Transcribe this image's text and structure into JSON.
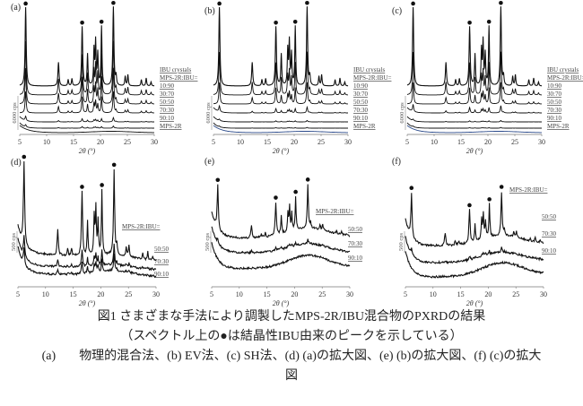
{
  "figure": {
    "caption_title": "図1 さまざまな手法により調製したMPS-2R/IBU混合物のPXRDの結果",
    "caption_note": "（スペクトル上の●は結晶性IBU由来のピークを示している）",
    "caption_line3_prefix": "(a)",
    "caption_line3": "物理的混合法、(b) EV法、(c) SH法、(d) (a)の拡大図、(e) (b)の拡大図、(f) (c)の拡大",
    "caption_line4": "図"
  },
  "chart_data": [
    {
      "panel": "(a)",
      "type": "line",
      "xlabel": "2θ (°)",
      "xlim": [
        5,
        30
      ],
      "xticks": [
        "5",
        "10",
        "15",
        "20",
        "25",
        "30"
      ],
      "scale_bar": "6000 cps",
      "legend_header": "MPS-2R:IBU=",
      "peak_markers_2theta": [
        6.1,
        16.6,
        20.2,
        22.4
      ],
      "series": [
        {
          "name": "IBU crystals",
          "kind": "crystal"
        },
        {
          "name": "10:90",
          "kind": "mix",
          "intensity": 0.75
        },
        {
          "name": "30:70",
          "kind": "mix",
          "intensity": 0.5
        },
        {
          "name": "50:50",
          "kind": "mix",
          "intensity": 0.3
        },
        {
          "name": "70:30",
          "kind": "mix",
          "intensity": 0.06
        },
        {
          "name": "90:10",
          "kind": "mix",
          "intensity": 0.03
        },
        {
          "name": "MPS-2R",
          "kind": "amorphous"
        }
      ]
    },
    {
      "panel": "(b)",
      "type": "line",
      "xlabel": "2θ (°)",
      "xlim": [
        5,
        30
      ],
      "xticks": [
        "5",
        "10",
        "15",
        "20",
        "25",
        "30"
      ],
      "scale_bar": "6000 cps",
      "legend_header": "MPS-2R:IBU=",
      "peak_markers_2theta": [
        6.1,
        16.6,
        20.2,
        22.4
      ],
      "series": [
        {
          "name": "IBU crystals",
          "kind": "crystal"
        },
        {
          "name": "10:90",
          "kind": "mix",
          "intensity": 0.6
        },
        {
          "name": "30:70",
          "kind": "mix",
          "intensity": 0.3
        },
        {
          "name": "50:50",
          "kind": "mix",
          "intensity": 0.08
        },
        {
          "name": "70:30",
          "kind": "mix",
          "intensity": 0.02
        },
        {
          "name": "90:10",
          "kind": "mix",
          "intensity": 0.01
        },
        {
          "name": "MPS-2R",
          "kind": "amorphous",
          "color": "#2b4a8a"
        }
      ]
    },
    {
      "panel": "(c)",
      "type": "line",
      "xlabel": "2θ (°)",
      "xlim": [
        5,
        30
      ],
      "xticks": [
        "5",
        "10",
        "15",
        "20",
        "25",
        "30"
      ],
      "scale_bar": "6000 cps",
      "legend_header": "MPS-2R:IBU=",
      "peak_markers_2theta": [
        6.1,
        16.6,
        20.2,
        22.4
      ],
      "series": [
        {
          "name": "IBU crystals",
          "kind": "crystal"
        },
        {
          "name": "10:90",
          "kind": "mix",
          "intensity": 0.6
        },
        {
          "name": "30:70",
          "kind": "mix",
          "intensity": 0.3
        },
        {
          "name": "50:50",
          "kind": "mix",
          "intensity": 0.1
        },
        {
          "name": "70:30",
          "kind": "mix",
          "intensity": 0.02
        },
        {
          "name": "90:10",
          "kind": "mix",
          "intensity": 0.01
        },
        {
          "name": "MPS-2R",
          "kind": "amorphous",
          "color": "#2b4a8a"
        }
      ]
    },
    {
      "panel": "(d)",
      "type": "line",
      "xlabel": "2θ (°)",
      "xlim": [
        5,
        30
      ],
      "xticks": [
        "5",
        "10",
        "15",
        "20",
        "25",
        "30"
      ],
      "scale_bar": "500 cps",
      "legend_header": "MPS-2R:IBU=",
      "peak_markers_2theta": [
        6.1,
        16.6,
        20.2,
        22.4
      ],
      "series": [
        {
          "name": "50:50",
          "kind": "zoom",
          "intensity": 1.0
        },
        {
          "name": "70:30",
          "kind": "zoom",
          "intensity": 0.25
        },
        {
          "name": "90:10",
          "kind": "zoom",
          "intensity": 0.2
        }
      ]
    },
    {
      "panel": "(e)",
      "type": "line",
      "xlabel": "2θ (°)",
      "xlim": [
        5,
        30
      ],
      "xticks": [
        "5",
        "10",
        "15",
        "20",
        "25",
        "30"
      ],
      "scale_bar": "500 cps",
      "legend_header": "MPS-2R:IBU=",
      "peak_markers_2theta": [
        6.1,
        16.6,
        20.2,
        22.4
      ],
      "series": [
        {
          "name": "50:50",
          "kind": "zoom",
          "intensity": 0.7
        },
        {
          "name": "70:30",
          "kind": "zoom",
          "intensity": 0.08
        },
        {
          "name": "90:10",
          "kind": "zoom",
          "intensity": 0.0
        }
      ]
    },
    {
      "panel": "(f)",
      "type": "line",
      "xlabel": "2θ (°)",
      "xlim": [
        5,
        30
      ],
      "xticks": [
        "5",
        "10",
        "15",
        "20",
        "25",
        "30"
      ],
      "scale_bar": "500 cps",
      "legend_header": "MPS-2R:IBU=",
      "peak_markers_2theta": [
        6.1,
        16.6,
        20.2,
        22.4
      ],
      "series": [
        {
          "name": "50:50",
          "kind": "zoom",
          "intensity": 0.7
        },
        {
          "name": "70:30",
          "kind": "zoom",
          "intensity": 0.08
        },
        {
          "name": "90:10",
          "kind": "zoom",
          "intensity": 0.0
        }
      ]
    }
  ]
}
